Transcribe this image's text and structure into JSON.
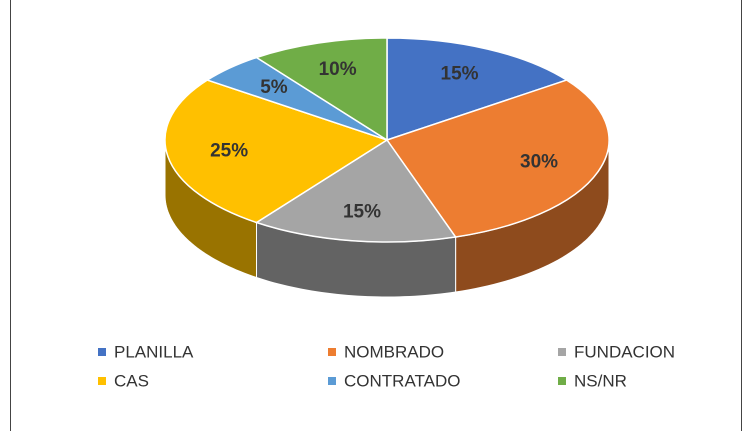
{
  "chart_data": {
    "type": "pie",
    "categories": [
      "PLANILLA",
      "NOMBRADO",
      "FUNDACION",
      "CAS",
      "CONTRATADO",
      "NS/NR"
    ],
    "values": [
      15,
      30,
      15,
      25,
      5,
      10
    ],
    "value_labels": [
      "15%",
      "30%",
      "15%",
      "25%",
      "5%",
      "10%"
    ],
    "colors": [
      "#4472c4",
      "#ed7d31",
      "#a5a5a5",
      "#ffc000",
      "#5b9bd5",
      "#70ad47"
    ],
    "legend": "bottom"
  }
}
